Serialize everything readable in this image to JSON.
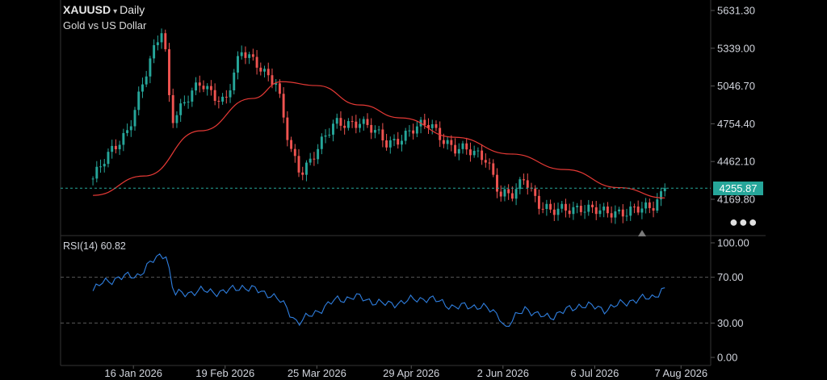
{
  "header": {
    "symbol": "XAUUSD",
    "interval": "Daily",
    "name": "Gold vs US Dollar"
  },
  "colors": {
    "up": "#26a69a",
    "down": "#ef5350",
    "ma": "#e53935",
    "rsi": "#2f7fe0",
    "last_line": "#26a69a",
    "grid": "#2a2a2a",
    "background": "#000000"
  },
  "icons": {
    "menu": "more-dots-icon",
    "marker": "triangle-up-icon",
    "caret": "caret-down-icon"
  },
  "chart_data": [
    {
      "type": "candlestick",
      "title": "",
      "y_ticks": [
        "5631.30",
        "5339.00",
        "5046.70",
        "4754.40",
        "4462.10",
        "4169.80"
      ],
      "y_tick_values": [
        5631.3,
        5339.0,
        5046.7,
        4754.4,
        4462.1,
        4169.8
      ],
      "ylim": [
        3980,
        5650
      ],
      "last_price": "4255.87",
      "x_ticks": [
        "16 Jan 2026",
        "19 Feb 2026",
        "25 Mar 2026",
        "29 Apr 2026",
        "2 Jun 2026",
        "6 Jul 2026",
        "7 Aug 2026"
      ],
      "key_points": [
        {
          "date": "2026-01-01",
          "close": 4330
        },
        {
          "date": "2026-01-14",
          "close": 4720
        },
        {
          "date": "2026-01-27",
          "close": 5520
        },
        {
          "date": "2026-01-30",
          "close": 4800
        },
        {
          "date": "2026-02-10",
          "close": 5060
        },
        {
          "date": "2026-02-19",
          "close": 4930
        },
        {
          "date": "2026-02-25",
          "close": 5300
        },
        {
          "date": "2026-03-03",
          "close": 5230
        },
        {
          "date": "2026-03-10",
          "close": 5060
        },
        {
          "date": "2026-03-15",
          "close": 4550
        },
        {
          "date": "2026-03-19",
          "close": 4380
        },
        {
          "date": "2026-03-25",
          "close": 4560
        },
        {
          "date": "2026-04-01",
          "close": 4750
        },
        {
          "date": "2026-04-10",
          "close": 4780
        },
        {
          "date": "2026-04-20",
          "close": 4600
        },
        {
          "date": "2026-04-29",
          "close": 4700
        },
        {
          "date": "2026-05-06",
          "close": 4750
        },
        {
          "date": "2026-05-15",
          "close": 4560
        },
        {
          "date": "2026-05-27",
          "close": 4500
        },
        {
          "date": "2026-06-01",
          "close": 4200
        },
        {
          "date": "2026-06-06",
          "close": 4190
        },
        {
          "date": "2026-06-10",
          "close": 4350
        },
        {
          "date": "2026-06-15",
          "close": 4150
        },
        {
          "date": "2026-06-20",
          "close": 4060
        },
        {
          "date": "2026-07-01",
          "close": 4120
        },
        {
          "date": "2026-07-10",
          "close": 4050
        },
        {
          "date": "2026-07-20",
          "close": 4100
        },
        {
          "date": "2026-07-27",
          "close": 4080
        },
        {
          "date": "2026-08-01",
          "close": 4256
        }
      ],
      "moving_average": [
        {
          "date": "2026-01-01",
          "value": 4200
        },
        {
          "date": "2026-01-20",
          "value": 4350
        },
        {
          "date": "2026-02-10",
          "value": 4700
        },
        {
          "date": "2026-03-01",
          "value": 4950
        },
        {
          "date": "2026-03-12",
          "value": 5080
        },
        {
          "date": "2026-03-25",
          "value": 5050
        },
        {
          "date": "2026-04-10",
          "value": 4900
        },
        {
          "date": "2026-04-25",
          "value": 4800
        },
        {
          "date": "2026-05-15",
          "value": 4650
        },
        {
          "date": "2026-06-05",
          "value": 4520
        },
        {
          "date": "2026-06-25",
          "value": 4400
        },
        {
          "date": "2026-07-15",
          "value": 4260
        },
        {
          "date": "2026-08-01",
          "value": 4180
        }
      ]
    },
    {
      "type": "line",
      "title": "",
      "label": "RSI(14)",
      "value_label": "60.82",
      "y_ticks": [
        "100.00",
        "70.00",
        "30.00",
        "0.00"
      ],
      "y_tick_values": [
        100,
        70,
        30,
        0
      ],
      "ylim": [
        0,
        100
      ],
      "levels": [
        70,
        30
      ],
      "points": [
        {
          "date": "2026-01-01",
          "value": 58
        },
        {
          "date": "2026-01-05",
          "value": 66
        },
        {
          "date": "2026-01-12",
          "value": 70
        },
        {
          "date": "2026-01-18",
          "value": 72
        },
        {
          "date": "2026-01-25",
          "value": 88
        },
        {
          "date": "2026-01-28",
          "value": 91
        },
        {
          "date": "2026-01-31",
          "value": 55
        },
        {
          "date": "2026-02-10",
          "value": 58
        },
        {
          "date": "2026-02-19",
          "value": 57
        },
        {
          "date": "2026-02-25",
          "value": 62
        },
        {
          "date": "2026-03-08",
          "value": 55
        },
        {
          "date": "2026-03-12",
          "value": 48
        },
        {
          "date": "2026-03-18",
          "value": 30
        },
        {
          "date": "2026-03-25",
          "value": 40
        },
        {
          "date": "2026-04-01",
          "value": 50
        },
        {
          "date": "2026-04-08",
          "value": 53
        },
        {
          "date": "2026-04-20",
          "value": 46
        },
        {
          "date": "2026-04-29",
          "value": 50
        },
        {
          "date": "2026-05-05",
          "value": 52
        },
        {
          "date": "2026-05-15",
          "value": 44
        },
        {
          "date": "2026-05-25",
          "value": 45
        },
        {
          "date": "2026-06-01",
          "value": 36
        },
        {
          "date": "2026-06-03",
          "value": 25
        },
        {
          "date": "2026-06-10",
          "value": 44
        },
        {
          "date": "2026-06-15",
          "value": 36
        },
        {
          "date": "2026-06-20",
          "value": 36
        },
        {
          "date": "2026-07-01",
          "value": 46
        },
        {
          "date": "2026-07-10",
          "value": 42
        },
        {
          "date": "2026-07-20",
          "value": 50
        },
        {
          "date": "2026-07-27",
          "value": 52
        },
        {
          "date": "2026-08-01",
          "value": 60.8
        }
      ]
    }
  ]
}
